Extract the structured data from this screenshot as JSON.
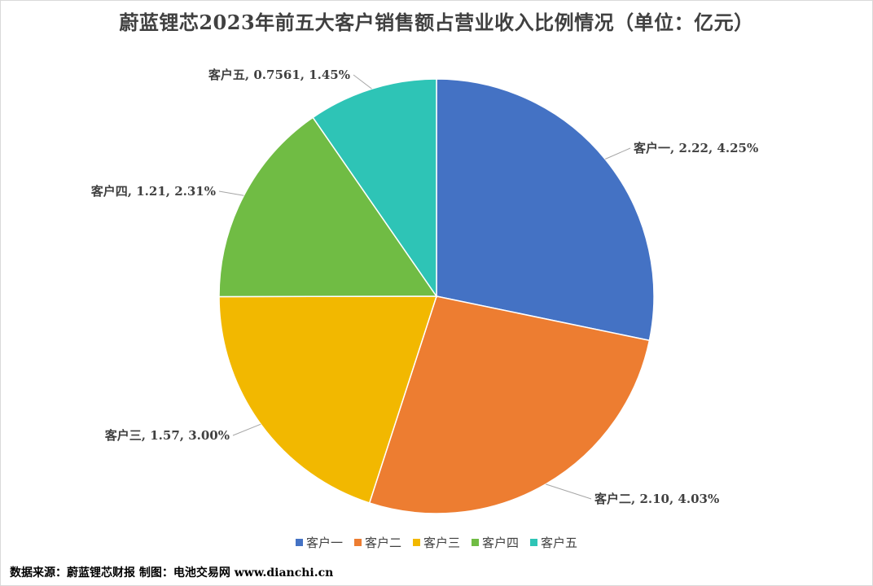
{
  "title": "蔚蓝锂芯2023年前五大客户销售额占营业收入比例情况（单位：亿元）",
  "footer": "数据来源：蔚蓝锂芯财报  制图：电池交易网 www.dianchi.cn",
  "chart_data": {
    "type": "pie",
    "title": "蔚蓝锂芯2023年前五大客户销售额占营业收入比例情况（单位：亿元）",
    "unit": "亿元",
    "legend_position": "bottom",
    "slices": [
      {
        "name": "客户一",
        "value": 2.22,
        "percent": "4.25%",
        "label": "客户一, 2.22, 4.25%",
        "color": "#4472C4"
      },
      {
        "name": "客户二",
        "value": 2.1,
        "percent": "4.03%",
        "label": "客户二, 2.10, 4.03%",
        "color": "#ED7D31"
      },
      {
        "name": "客户三",
        "value": 1.57,
        "percent": "3.00%",
        "label": "客户三, 1.57, 3.00%",
        "color": "#F2B800"
      },
      {
        "name": "客户四",
        "value": 1.21,
        "percent": "2.31%",
        "label": "客户四, 1.21, 2.31%",
        "color": "#70BC44"
      },
      {
        "name": "客户五",
        "value": 0.7561,
        "percent": "1.45%",
        "label": "客户五, 0.7561, 1.45%",
        "color": "#2EC4B6"
      }
    ]
  }
}
